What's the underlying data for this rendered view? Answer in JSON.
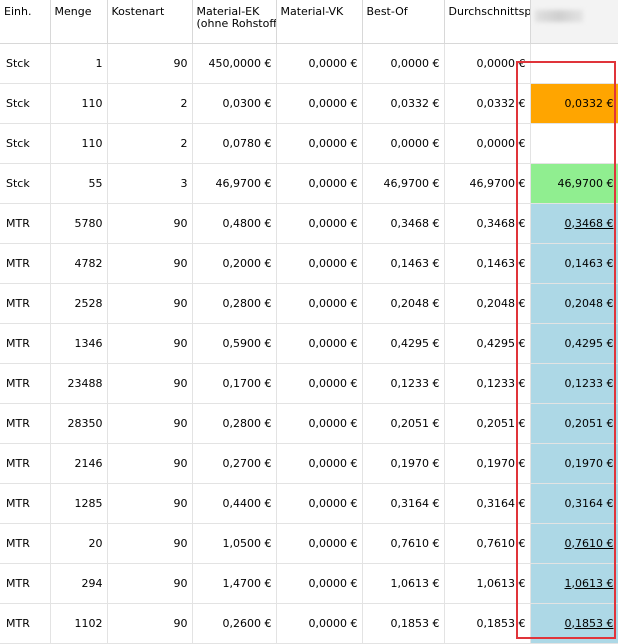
{
  "columns": [
    "Einh.",
    "Menge",
    "Kostenart",
    "Material-EK",
    "(ohne Rohstoff)",
    "Material-VK",
    "Best-Of",
    "Durchschnittspr"
  ],
  "rows": [
    {
      "einh": "Stck",
      "menge": "1",
      "kostenart": "90",
      "ek": "450,0000 €",
      "vk": "0,0000 €",
      "bestof": "0,0000 €",
      "avg": "0,0000 €",
      "last": "",
      "color": "white",
      "underline": false
    },
    {
      "einh": "Stck",
      "menge": "110",
      "kostenart": "2",
      "ek": "0,0300 €",
      "vk": "0,0000 €",
      "bestof": "0,0332 €",
      "avg": "0,0332 €",
      "last": "0,0332 €",
      "color": "orange",
      "underline": false
    },
    {
      "einh": "Stck",
      "menge": "110",
      "kostenart": "2",
      "ek": "0,0780 €",
      "vk": "0,0000 €",
      "bestof": "0,0000 €",
      "avg": "0,0000 €",
      "last": "",
      "color": "white",
      "underline": false
    },
    {
      "einh": "Stck",
      "menge": "55",
      "kostenart": "3",
      "ek": "46,9700 €",
      "vk": "0,0000 €",
      "bestof": "46,9700 €",
      "avg": "46,9700 €",
      "last": "46,9700 €",
      "color": "green",
      "underline": false
    },
    {
      "einh": "MTR",
      "menge": "5780",
      "kostenart": "90",
      "ek": "0,4800 €",
      "vk": "0,0000 €",
      "bestof": "0,3468 €",
      "avg": "0,3468 €",
      "last": "0,3468 €",
      "color": "blue",
      "underline": true
    },
    {
      "einh": "MTR",
      "menge": "4782",
      "kostenart": "90",
      "ek": "0,2000 €",
      "vk": "0,0000 €",
      "bestof": "0,1463 €",
      "avg": "0,1463 €",
      "last": "0,1463 €",
      "color": "blue",
      "underline": false
    },
    {
      "einh": "MTR",
      "menge": "2528",
      "kostenart": "90",
      "ek": "0,2800 €",
      "vk": "0,0000 €",
      "bestof": "0,2048 €",
      "avg": "0,2048 €",
      "last": "0,2048 €",
      "color": "blue",
      "underline": false
    },
    {
      "einh": "MTR",
      "menge": "1346",
      "kostenart": "90",
      "ek": "0,5900 €",
      "vk": "0,0000 €",
      "bestof": "0,4295 €",
      "avg": "0,4295 €",
      "last": "0,4295 €",
      "color": "blue",
      "underline": false
    },
    {
      "einh": "MTR",
      "menge": "23488",
      "kostenart": "90",
      "ek": "0,1700 €",
      "vk": "0,0000 €",
      "bestof": "0,1233 €",
      "avg": "0,1233 €",
      "last": "0,1233 €",
      "color": "blue",
      "underline": false
    },
    {
      "einh": "MTR",
      "menge": "28350",
      "kostenart": "90",
      "ek": "0,2800 €",
      "vk": "0,0000 €",
      "bestof": "0,2051 €",
      "avg": "0,2051 €",
      "last": "0,2051 €",
      "color": "blue",
      "underline": false
    },
    {
      "einh": "MTR",
      "menge": "2146",
      "kostenart": "90",
      "ek": "0,2700 €",
      "vk": "0,0000 €",
      "bestof": "0,1970 €",
      "avg": "0,1970 €",
      "last": "0,1970 €",
      "color": "blue",
      "underline": false
    },
    {
      "einh": "MTR",
      "menge": "1285",
      "kostenart": "90",
      "ek": "0,4400 €",
      "vk": "0,0000 €",
      "bestof": "0,3164 €",
      "avg": "0,3164 €",
      "last": "0,3164 €",
      "color": "blue",
      "underline": false
    },
    {
      "einh": "MTR",
      "menge": "20",
      "kostenart": "90",
      "ek": "1,0500 €",
      "vk": "0,0000 €",
      "bestof": "0,7610 €",
      "avg": "0,7610 €",
      "last": "0,7610 €",
      "color": "blue",
      "underline": true
    },
    {
      "einh": "MTR",
      "menge": "294",
      "kostenart": "90",
      "ek": "1,4700 €",
      "vk": "0,0000 €",
      "bestof": "1,0613 €",
      "avg": "1,0613 €",
      "last": "1,0613 €",
      "color": "blue",
      "underline": true
    },
    {
      "einh": "MTR",
      "menge": "1102",
      "kostenart": "90",
      "ek": "0,2600 €",
      "vk": "0,0000 €",
      "bestof": "0,1853 €",
      "avg": "0,1853 €",
      "last": "0,1853 €",
      "color": "blue",
      "underline": true
    }
  ],
  "colors": {
    "orange": "#ffa500",
    "green": "#90ee90",
    "blue": "#add8e6",
    "highlight_frame": "#e0343a"
  }
}
